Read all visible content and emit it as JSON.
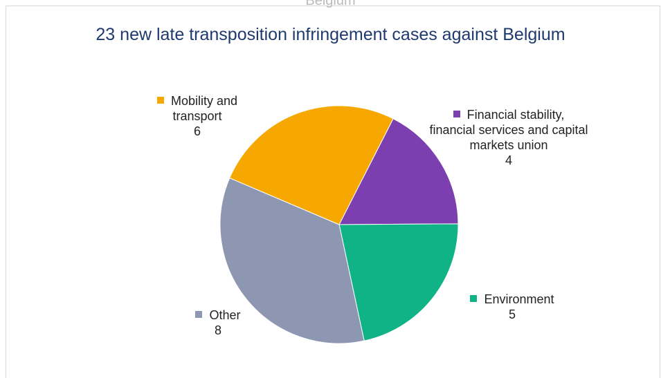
{
  "chart_data": {
    "type": "pie",
    "top_text": "Belgium",
    "title": "23 new late transposition infringement cases against Belgium",
    "categories": [
      "Financial stability, financial services and capital markets union",
      "Environment",
      "Other",
      "Mobility and transport"
    ],
    "values": [
      4,
      5,
      8,
      6
    ],
    "colors": [
      "#7b3fb0",
      "#10b386",
      "#8e97b2",
      "#f6a800"
    ]
  }
}
